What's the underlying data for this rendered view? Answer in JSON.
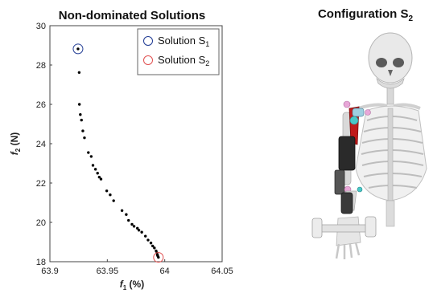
{
  "chart_data": {
    "type": "scatter",
    "title": "Non-dominated Solutions",
    "xlabel_var": "f",
    "xlabel_sub": "1",
    "xlabel_unit": " (%)",
    "ylabel_var": "f",
    "ylabel_sub": "2",
    "ylabel_unit": " (N)",
    "xlim": [
      63.9,
      64.05
    ],
    "ylim": [
      18,
      30
    ],
    "xticks": [
      "63.9",
      "63.95",
      "64",
      "64.05"
    ],
    "xtick_values": [
      63.9,
      63.95,
      64.0,
      64.05
    ],
    "yticks": [
      "18",
      "20",
      "22",
      "24",
      "26",
      "28",
      "30"
    ],
    "ytick_values": [
      18,
      20,
      22,
      24,
      26,
      28,
      30
    ],
    "grid": false,
    "legend": [
      {
        "label_main": "Solution S",
        "label_sub": "1",
        "color": "#1f3a93"
      },
      {
        "label_main": "Solution S",
        "label_sub": "2",
        "color": "#e05050"
      }
    ],
    "legend_position": "top-right",
    "marker_color": "#000000",
    "points": [
      [
        63.9245,
        28.82
      ],
      [
        63.9255,
        27.62
      ],
      [
        63.9257,
        26.0
      ],
      [
        63.9265,
        25.48
      ],
      [
        63.9275,
        25.2
      ],
      [
        63.9287,
        24.65
      ],
      [
        63.9301,
        24.3
      ],
      [
        63.9335,
        23.55
      ],
      [
        63.936,
        23.35
      ],
      [
        63.9375,
        22.9
      ],
      [
        63.9397,
        22.7
      ],
      [
        63.9415,
        22.5
      ],
      [
        63.943,
        22.3
      ],
      [
        63.9445,
        22.2
      ],
      [
        63.9495,
        21.6
      ],
      [
        63.9525,
        21.4
      ],
      [
        63.9555,
        21.1
      ],
      [
        63.9628,
        20.6
      ],
      [
        63.9665,
        20.4
      ],
      [
        63.9685,
        20.1
      ],
      [
        63.9715,
        19.9
      ],
      [
        63.9733,
        19.8
      ],
      [
        63.9762,
        19.7
      ],
      [
        63.9775,
        19.6
      ],
      [
        63.98,
        19.5
      ],
      [
        63.9832,
        19.3
      ],
      [
        63.9855,
        19.1
      ],
      [
        63.988,
        18.95
      ],
      [
        63.9895,
        18.8
      ],
      [
        63.991,
        18.7
      ],
      [
        63.9925,
        18.55
      ],
      [
        63.9932,
        18.45
      ],
      [
        63.9936,
        18.35
      ],
      [
        63.9939,
        18.3
      ],
      [
        63.9945,
        18.22
      ]
    ],
    "highlight_points": [
      {
        "x": 63.9245,
        "y": 28.82,
        "color": "#1f3a93",
        "series": 1
      },
      {
        "x": 63.9945,
        "y": 18.22,
        "color": "#e05050",
        "series": 2
      }
    ]
  },
  "illustration": {
    "title_main": "Configuration S",
    "title_sub": "2",
    "icon": "skeleton-arm-exoskeleton-illustration"
  }
}
